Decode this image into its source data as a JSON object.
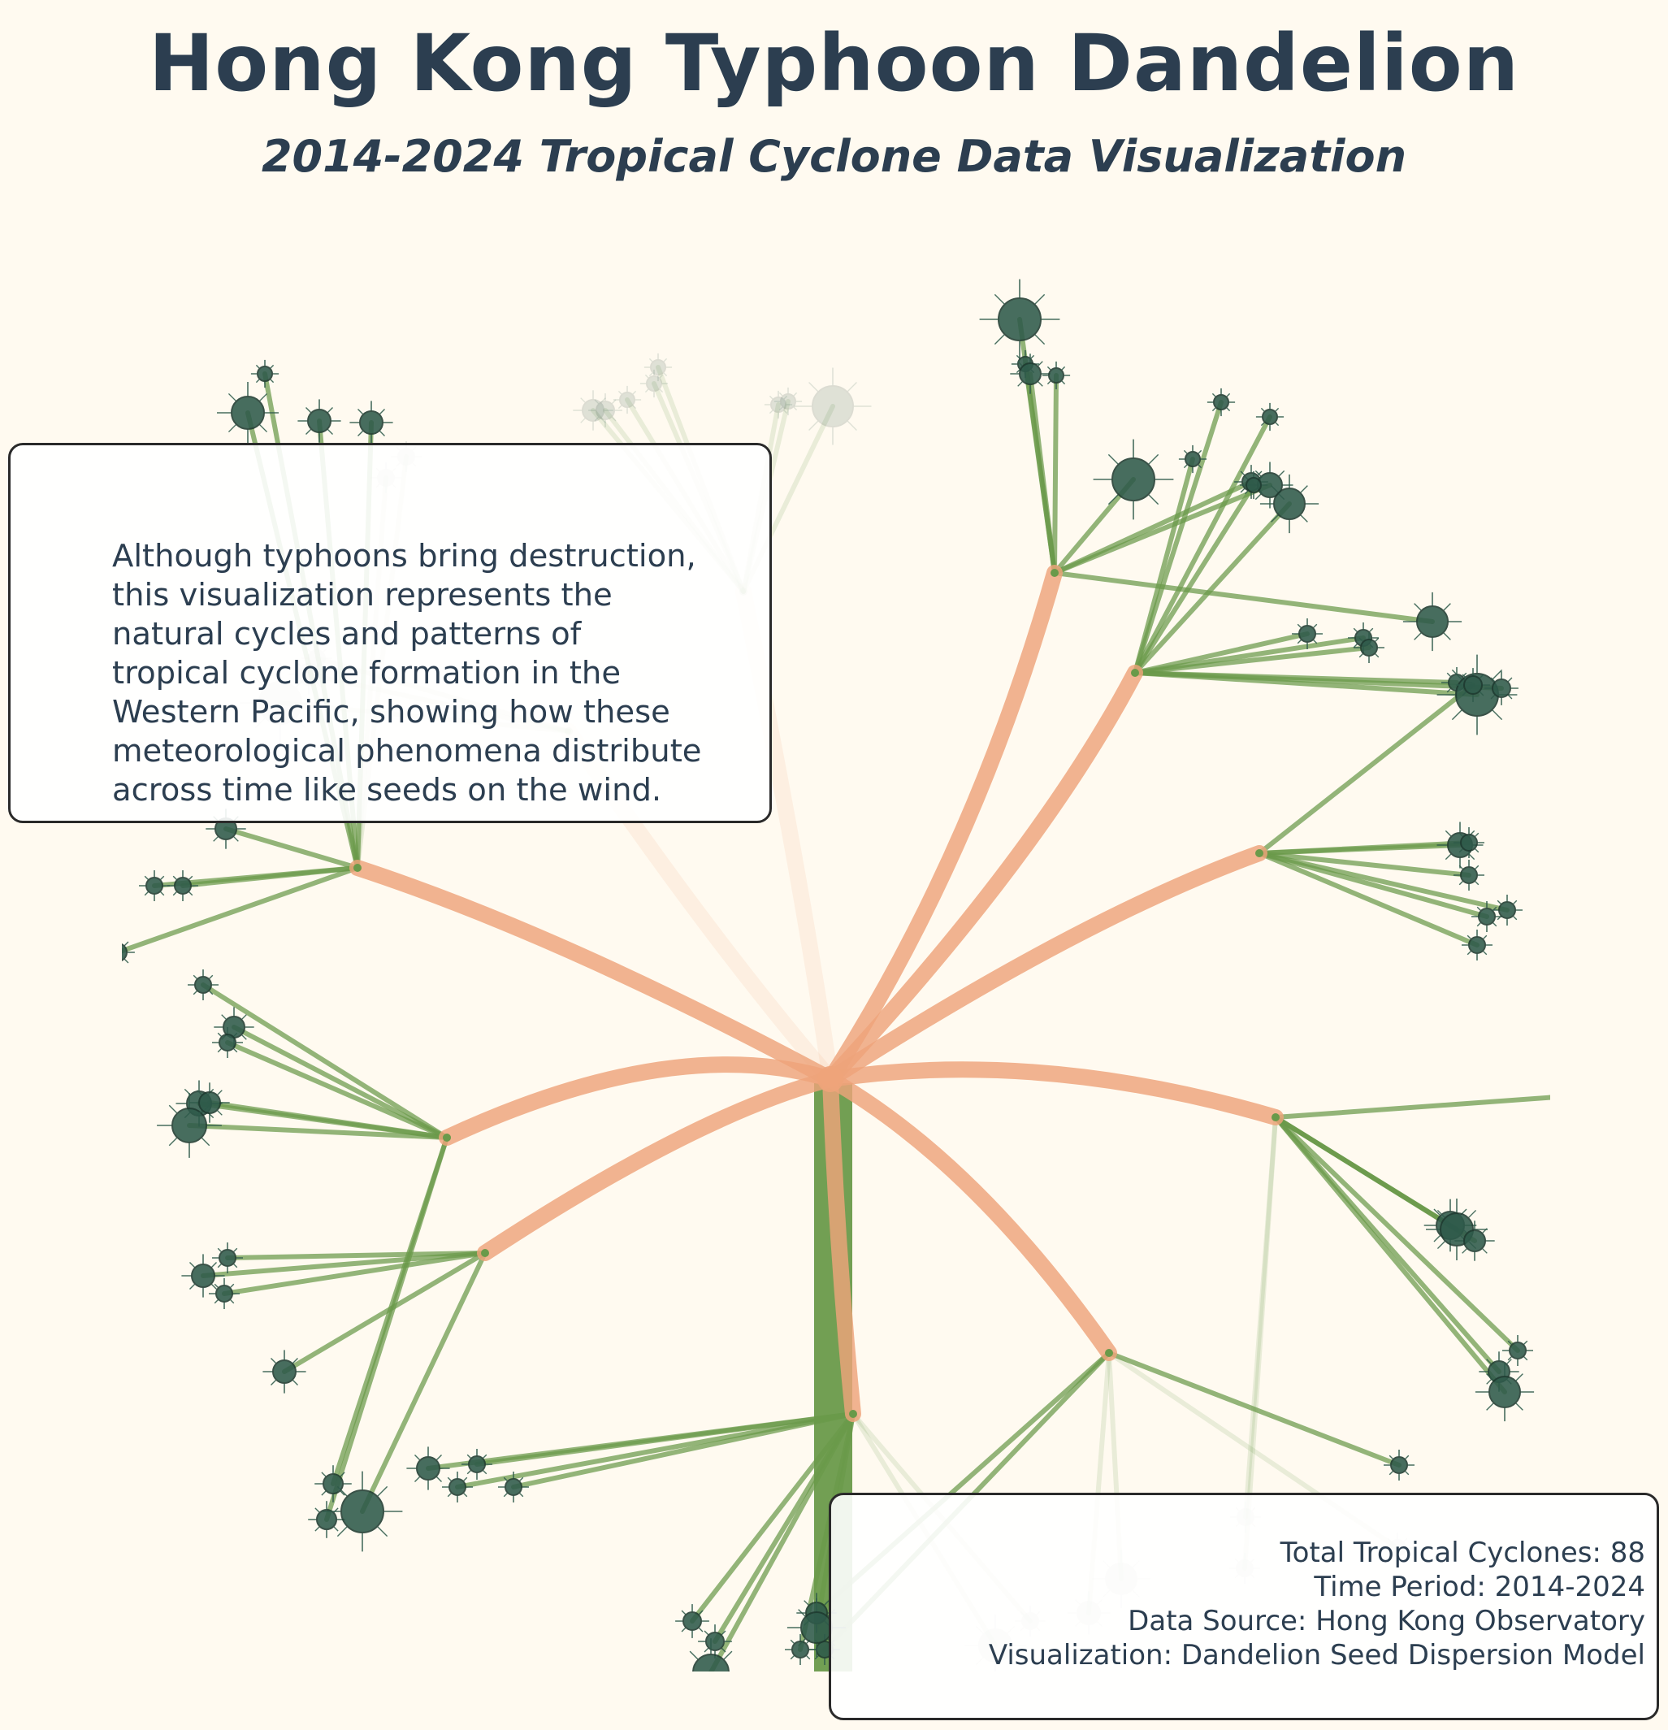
{
  "header": {
    "title": "Hong Kong Typhoon Dandelion",
    "subtitle": "2014-2024 Tropical Cyclone Data Visualization"
  },
  "annotation": {
    "text": "Although typhoons bring destruction,\nthis visualization represents the\nnatural cycles and patterns of\ntropical cyclone formation in the\nWestern Pacific, showing how these\nmeteorological phenomena distribute\nacross time like seeds on the wind."
  },
  "stats": {
    "total_line": "Total Tropical Cyclones: 88",
    "period_line": "Time Period: 2014-2024",
    "source_line": "Data Source: Hong Kong Observatory",
    "model_line": "Visualization: Dandelion Seed Dispersion Model"
  },
  "colors": {
    "background": "#fffaf0",
    "stem": "#6a9a4a",
    "branch": "#eea47a",
    "seed_line": "#6a9a4a",
    "seed": "#2e5a4a",
    "text": "#2c3e50"
  }
}
